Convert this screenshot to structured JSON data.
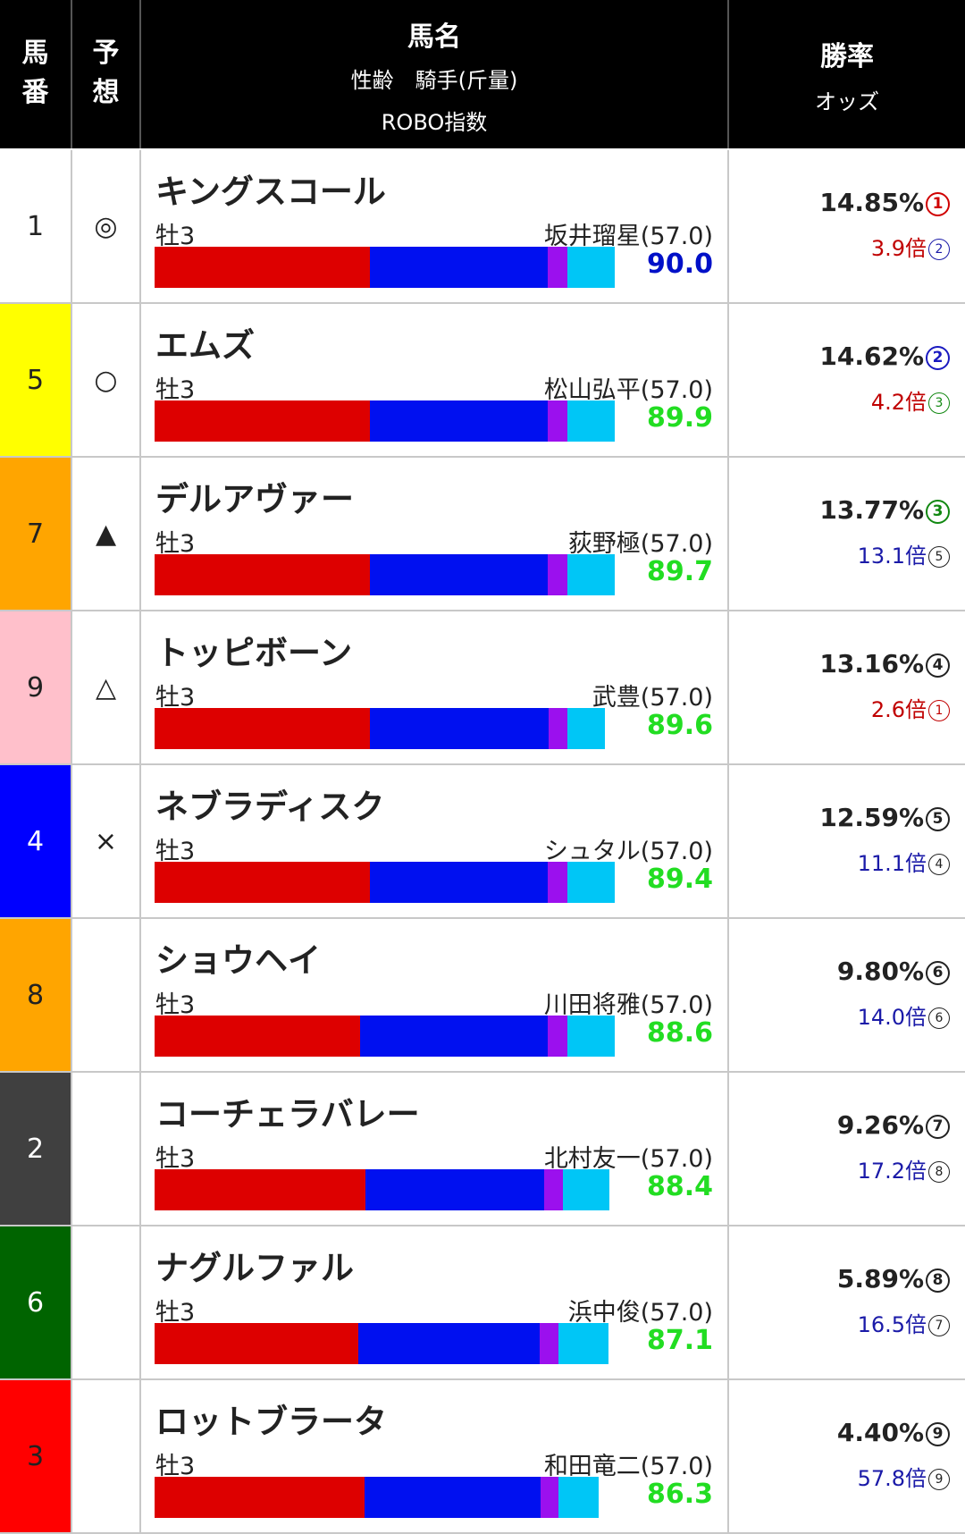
{
  "header": {
    "col_num": "馬番",
    "col_pred": "予想",
    "col_name": "馬名",
    "col_sub": "性齢　騎手(斤量)",
    "col_index": "ROBO指数",
    "col_rate": "勝率",
    "col_odds": "オッズ"
  },
  "colors": {
    "bar_red": "#dd0000",
    "bar_blue": "#0010f0",
    "bar_purple": "#9b10ee",
    "bar_cyan": "#00c6f6",
    "index_blue": "#0010c8",
    "index_green": "#22dd22"
  },
  "rows": [
    {
      "num": "1",
      "bg": "#ffffff",
      "fg": "#222222",
      "mark": "◎",
      "name": "キングスコール",
      "sexage": "牡3",
      "jockey": "坂井瑠星(57.0)",
      "index": "90.0",
      "index_color": "#0010c8",
      "segments": [
        0.459,
        0.379,
        0.041,
        0.101
      ],
      "bar_fill": 1.0,
      "rate": "14.85%",
      "rate_rank": "1",
      "rate_rank_color": "#d00000",
      "odds": "3.9倍",
      "odds_color": "#c00000",
      "odds_rank": "2",
      "odds_rank_color": "#1a1aa8"
    },
    {
      "num": "5",
      "bg": "#ffff00",
      "fg": "#222222",
      "mark": "○",
      "name": "エムズ",
      "sexage": "牡3",
      "jockey": "松山弘平(57.0)",
      "index": "89.9",
      "index_color": "#22dd22",
      "segments": [
        0.459,
        0.379,
        0.041,
        0.101
      ],
      "bar_fill": 1.0,
      "rate": "14.62%",
      "rate_rank": "2",
      "rate_rank_color": "#1a1ac0",
      "odds": "4.2倍",
      "odds_color": "#c00000",
      "odds_rank": "3",
      "odds_rank_color": "#118811"
    },
    {
      "num": "7",
      "bg": "#ffa500",
      "fg": "#222222",
      "mark": "▲",
      "name": "デルアヴァー",
      "sexage": "牡3",
      "jockey": "荻野極(57.0)",
      "index": "89.7",
      "index_color": "#22dd22",
      "segments": [
        0.459,
        0.379,
        0.041,
        0.101
      ],
      "bar_fill": 1.0,
      "rate": "13.77%",
      "rate_rank": "3",
      "rate_rank_color": "#118811",
      "odds": "13.1倍",
      "odds_color": "#1a1aa8",
      "odds_rank": "5",
      "odds_rank_color": "#222222"
    },
    {
      "num": "9",
      "bg": "#ffc0cb",
      "fg": "#222222",
      "mark": "△",
      "name": "トッピボーン",
      "sexage": "牡3",
      "jockey": "武豊(57.0)",
      "index": "89.6",
      "index_color": "#22dd22",
      "segments": [
        0.469,
        0.389,
        0.041,
        0.081
      ],
      "bar_fill": 0.979,
      "rate": "13.16%",
      "rate_rank": "4",
      "rate_rank_color": "#222222",
      "odds": "2.6倍",
      "odds_color": "#c00000",
      "odds_rank": "1",
      "odds_rank_color": "#c00000"
    },
    {
      "num": "4",
      "bg": "#0000ff",
      "fg": "#ffffff",
      "mark": "×",
      "name": "ネブラディスク",
      "sexage": "牡3",
      "jockey": "シュタル(57.0)",
      "index": "89.4",
      "index_color": "#22dd22",
      "segments": [
        0.459,
        0.379,
        0.041,
        0.101
      ],
      "bar_fill": 1.0,
      "rate": "12.59%",
      "rate_rank": "5",
      "rate_rank_color": "#222222",
      "odds": "11.1倍",
      "odds_color": "#1a1aa8",
      "odds_rank": "4",
      "odds_rank_color": "#222222"
    },
    {
      "num": "8",
      "bg": "#ffa500",
      "fg": "#222222",
      "mark": "",
      "name": "ショウヘイ",
      "sexage": "牡3",
      "jockey": "川田将雅(57.0)",
      "index": "88.6",
      "index_color": "#22dd22",
      "segments": [
        0.438,
        0.4,
        0.041,
        0.101
      ],
      "bar_fill": 1.0,
      "rate": "9.80%",
      "rate_rank": "6",
      "rate_rank_color": "#222222",
      "odds": "14.0倍",
      "odds_color": "#1a1aa8",
      "odds_rank": "6",
      "odds_rank_color": "#222222"
    },
    {
      "num": "2",
      "bg": "#404040",
      "fg": "#ffffff",
      "mark": "",
      "name": "コーチェラバレー",
      "sexage": "牡3",
      "jockey": "北村友一(57.0)",
      "index": "88.4",
      "index_color": "#22dd22",
      "segments": [
        0.454,
        0.385,
        0.041,
        0.1
      ],
      "bar_fill": 0.99,
      "rate": "9.26%",
      "rate_rank": "7",
      "rate_rank_color": "#222222",
      "odds": "17.2倍",
      "odds_color": "#1a1aa8",
      "odds_rank": "8",
      "odds_rank_color": "#222222"
    },
    {
      "num": "6",
      "bg": "#006400",
      "fg": "#ffffff",
      "mark": "",
      "name": "ナグルファル",
      "sexage": "牡3",
      "jockey": "浜中俊(57.0)",
      "index": "87.1",
      "index_color": "#22dd22",
      "segments": [
        0.449,
        0.4,
        0.041,
        0.11
      ],
      "bar_fill": 0.969,
      "rate": "5.89%",
      "rate_rank": "8",
      "rate_rank_color": "#222222",
      "odds": "16.5倍",
      "odds_color": "#1a1aa8",
      "odds_rank": "7",
      "odds_rank_color": "#222222"
    },
    {
      "num": "3",
      "bg": "#ff0000",
      "fg": "#222222",
      "mark": "",
      "name": "ロットブラータ",
      "sexage": "牡3",
      "jockey": "和田竜二(57.0)",
      "index": "86.3",
      "index_color": "#22dd22",
      "segments": [
        0.473,
        0.395,
        0.041,
        0.091
      ],
      "bar_fill": 0.948,
      "rate": "4.40%",
      "rate_rank": "9",
      "rate_rank_color": "#222222",
      "odds": "57.8倍",
      "odds_color": "#1a1aa8",
      "odds_rank": "9",
      "odds_rank_color": "#222222"
    }
  ]
}
